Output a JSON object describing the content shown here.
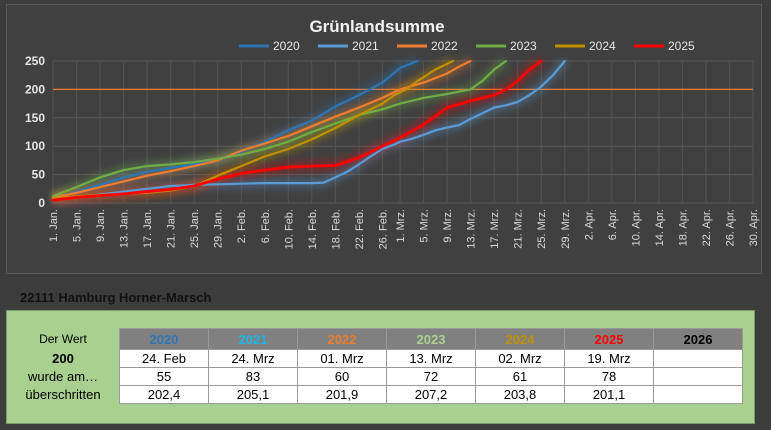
{
  "chart_data": {
    "type": "line",
    "title": "Grünlandsumme",
    "ylim": [
      0,
      250
    ],
    "yticks": [
      0,
      50,
      100,
      150,
      200,
      250
    ],
    "threshold": 200,
    "grid": true,
    "legend": "top",
    "x_start": "1. Jan.",
    "x_end": "30. Apr.",
    "xtick_labels": [
      "1. Jan.",
      "5. Jan.",
      "9. Jan.",
      "13. Jan.",
      "17. Jan.",
      "21. Jan.",
      "25. Jan.",
      "29. Jan.",
      "2. Feb.",
      "6. Feb.",
      "10. Feb.",
      "14. Feb.",
      "18. Feb.",
      "22. Feb.",
      "26. Feb.",
      "1. Mrz.",
      "5. Mrz.",
      "9. Mrz.",
      "13. Mrz.",
      "17. Mrz.",
      "21. Mrz.",
      "25. Mrz.",
      "29. Mrz.",
      "2. Apr.",
      "6. Apr.",
      "10. Apr.",
      "14. Apr.",
      "18. Apr.",
      "22. Apr.",
      "26. Apr.",
      "30. Apr."
    ],
    "series": [
      {
        "name": "2020",
        "color": "#2e75b6",
        "x": [
          "1. Jan.",
          "5. Jan.",
          "9. Jan.",
          "13. Jan.",
          "17. Jan.",
          "21. Jan.",
          "25. Jan.",
          "29. Jan.",
          "2. Feb.",
          "6. Feb.",
          "10. Feb.",
          "14. Feb.",
          "18. Feb.",
          "22. Feb.",
          "26. Feb.",
          "1. Mrz.",
          "4. Mrz."
        ],
        "y": [
          8,
          20,
          32,
          45,
          55,
          62,
          68,
          75,
          90,
          108,
          128,
          145,
          170,
          190,
          212,
          238,
          250
        ]
      },
      {
        "name": "2021",
        "color": "#5b9bd5",
        "x": [
          "1. Jan.",
          "9. Jan.",
          "17. Jan.",
          "21. Jan.",
          "25. Jan.",
          "29. Jan.",
          "2. Feb.",
          "6. Feb.",
          "10. Feb.",
          "14. Feb.",
          "16. Feb.",
          "18. Feb.",
          "20. Feb.",
          "22. Feb.",
          "24. Feb.",
          "26. Feb.",
          "28. Feb.",
          "1. Mrz.",
          "3. Mrz.",
          "5. Mrz.",
          "7. Mrz.",
          "9. Mrz.",
          "11. Mrz.",
          "13. Mrz.",
          "15. Mrz.",
          "17. Mrz.",
          "19. Mrz.",
          "21. Mrz.",
          "23. Mrz.",
          "25. Mrz.",
          "27. Mrz.",
          "29. Mrz."
        ],
        "y": [
          5,
          15,
          25,
          30,
          32,
          33,
          34,
          35,
          35,
          35,
          36,
          45,
          55,
          68,
          82,
          95,
          103,
          108,
          113,
          120,
          128,
          133,
          137,
          148,
          158,
          168,
          172,
          178,
          190,
          205,
          225,
          250
        ]
      },
      {
        "name": "2022",
        "color": "#ed7d31",
        "x": [
          "1. Jan.",
          "5. Jan.",
          "9. Jan.",
          "13. Jan.",
          "17. Jan.",
          "21. Jan.",
          "25. Jan.",
          "29. Jan.",
          "2. Feb.",
          "6. Feb.",
          "10. Feb.",
          "14. Feb.",
          "18. Feb.",
          "22. Feb.",
          "26. Feb.",
          "1. Mrz.",
          "5. Mrz.",
          "9. Mrz.",
          "11. Mrz.",
          "13. Mrz."
        ],
        "y": [
          10,
          18,
          28,
          38,
          48,
          56,
          65,
          75,
          92,
          105,
          118,
          135,
          152,
          168,
          185,
          200,
          212,
          228,
          240,
          250
        ]
      },
      {
        "name": "2023",
        "color": "#70ad47",
        "x": [
          "1. Jan.",
          "5. Jan.",
          "9. Jan.",
          "13. Jan.",
          "17. Jan.",
          "21. Jan.",
          "25. Jan.",
          "29. Jan.",
          "2. Feb.",
          "6. Feb.",
          "10. Feb.",
          "14. Feb.",
          "18. Feb.",
          "22. Feb.",
          "26. Feb.",
          "1. Mrz.",
          "5. Mrz.",
          "9. Mrz.",
          "13. Mrz.",
          "15. Mrz.",
          "17. Mrz.",
          "19. Mrz."
        ],
        "y": [
          12,
          28,
          45,
          58,
          65,
          68,
          72,
          78,
          85,
          95,
          108,
          125,
          140,
          155,
          165,
          175,
          185,
          192,
          200,
          215,
          235,
          250
        ]
      },
      {
        "name": "2024",
        "color": "#bf9000",
        "x": [
          "1. Jan.",
          "5. Jan.",
          "9. Jan.",
          "13. Jan.",
          "17. Jan.",
          "21. Jan.",
          "25. Jan.",
          "29. Jan.",
          "2. Feb.",
          "6. Feb.",
          "10. Feb.",
          "14. Feb.",
          "18. Feb.",
          "22. Feb.",
          "26. Feb.",
          "28. Feb.",
          "2. Mrz.",
          "4. Mrz.",
          "7. Mrz.",
          "10. Mrz."
        ],
        "y": [
          8,
          12,
          14,
          16,
          18,
          22,
          30,
          48,
          65,
          82,
          95,
          112,
          132,
          155,
          175,
          190,
          200,
          215,
          235,
          250
        ]
      },
      {
        "name": "2025",
        "color": "#ff0000",
        "x": [
          "1. Jan.",
          "5. Jan.",
          "9. Jan.",
          "13. Jan.",
          "17. Jan.",
          "21. Jan.",
          "25. Jan.",
          "29. Jan.",
          "2. Feb.",
          "6. Feb.",
          "10. Feb.",
          "14. Feb.",
          "18. Feb.",
          "22. Feb.",
          "26. Feb.",
          "1. Mrz.",
          "5. Mrz.",
          "9. Mrz.",
          "13. Mrz.",
          "17. Mrz.",
          "19. Mrz.",
          "21. Mrz.",
          "23. Mrz.",
          "25. Mrz."
        ],
        "y": [
          5,
          10,
          13,
          16,
          20,
          24,
          30,
          42,
          52,
          58,
          63,
          65,
          66,
          80,
          100,
          115,
          138,
          168,
          180,
          190,
          200,
          215,
          235,
          250
        ]
      }
    ]
  },
  "location": "22111 Hamburg Horner-Marsch",
  "table": {
    "label_header": "Der Wert",
    "row_labels": [
      "200",
      "wurde am…",
      "überschritten"
    ],
    "columns": [
      {
        "year": "2020",
        "color": "#2e75b6",
        "date": "24. Feb",
        "day": "55",
        "value": "202,4"
      },
      {
        "year": "2021",
        "color": "#1fb5e8",
        "date": "24. Mrz",
        "day": "83",
        "value": "205,1"
      },
      {
        "year": "2022",
        "color": "#ed7d31",
        "date": "01. Mrz",
        "day": "60",
        "value": "201,9"
      },
      {
        "year": "2023",
        "color": "#a9d08e",
        "date": "13. Mrz",
        "day": "72",
        "value": "207,2"
      },
      {
        "year": "2024",
        "color": "#bf9000",
        "date": "02. Mrz",
        "day": "61",
        "value": "203,8"
      },
      {
        "year": "2025",
        "color": "#ff0000",
        "date": "19. Mrz",
        "day": "78",
        "value": "201,1"
      },
      {
        "year": "2026",
        "color": "#000000",
        "date": "",
        "day": "",
        "value": ""
      }
    ]
  }
}
